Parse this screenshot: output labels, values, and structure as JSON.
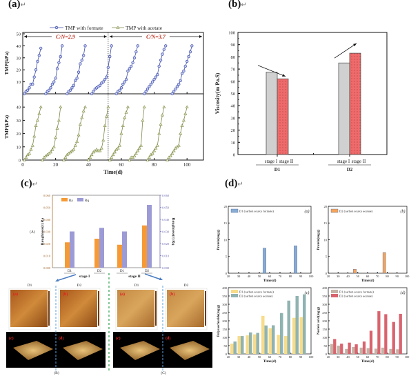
{
  "labels": {
    "a": "(a)",
    "b": "(b)",
    "c": "(c)",
    "d": "(d)",
    "return_mark": "↵"
  },
  "colors": {
    "formate": "#3b4ca8",
    "acetate": "#7d8a4a",
    "cn_text": "#c0392b",
    "stage1_gray": "#d0d0d0",
    "stage2_red": "#ef6b6b",
    "ra_orange": "#f59a35",
    "rq_purple": "#9c9bd6",
    "dc_yellow": "#f7dc8a",
    "dc_teal": "#8fb3b0",
    "dd_tan": "#c4b3a6",
    "dd_red": "#d9636e",
    "da_blue": "#8aabd3",
    "db_orange": "#f5a35a"
  },
  "chart_data": [
    {
      "id": "a",
      "type": "line",
      "title": "",
      "xlabel": "Time(d)",
      "ylabel": "TMP(kPa)",
      "xlim": [
        0,
        110
      ],
      "xticks": [
        0,
        20,
        40,
        60,
        80,
        100
      ],
      "top": {
        "ylim": [
          0,
          50
        ],
        "yticks": [
          10,
          20,
          30,
          40,
          50
        ],
        "ytick_labels": [
          "10",
          "20",
          "30",
          "40",
          "50"
        ]
      },
      "bottom": {
        "ylim": [
          0,
          50
        ],
        "yticks": [
          0,
          10,
          20,
          30,
          40
        ],
        "ytick_labels": [
          "0",
          "10",
          "20",
          "30",
          "40"
        ]
      },
      "divider_x": 52,
      "annotations": [
        {
          "text": "C/N=2.9",
          "range": [
            0,
            52
          ]
        },
        {
          "text": "C/N=3.7",
          "range": [
            52,
            110
          ]
        }
      ],
      "legend": [
        "TMP with formate",
        "TMP with acetate"
      ],
      "series": [
        {
          "name": "TMP with formate",
          "panel": "top",
          "cycles": [
            {
              "x": [
                1,
                2,
                3,
                4,
                5,
                6,
                7,
                8,
                9,
                10,
                11
              ],
              "y": [
                0,
                2,
                3,
                5,
                8,
                8,
                14,
                20,
                27,
                32,
                38
              ]
            },
            {
              "x": [
                14,
                15,
                16,
                17,
                18,
                19,
                20,
                21,
                22,
                23,
                24
              ],
              "y": [
                0,
                2,
                3,
                5,
                8,
                10,
                13,
                21,
                26,
                31,
                40
              ]
            },
            {
              "x": [
                27,
                28,
                29,
                30,
                31,
                32,
                33,
                34,
                35,
                36,
                37,
                38
              ],
              "y": [
                0,
                2,
                3,
                5,
                7,
                11,
                13,
                18,
                25,
                28,
                32,
                40
              ]
            },
            {
              "x": [
                42,
                43,
                44,
                45,
                46,
                47,
                48,
                49,
                50,
                51,
                52,
                53,
                54
              ],
              "y": [
                0,
                2,
                4,
                5,
                6,
                7,
                9,
                10,
                12,
                14,
                22,
                31,
                40
              ]
            },
            {
              "x": [
                57,
                58,
                59,
                60,
                61,
                62,
                63,
                64,
                65,
                66,
                67,
                68,
                69,
                70
              ],
              "y": [
                0,
                2,
                3,
                5,
                8,
                10,
                12,
                19,
                21,
                23,
                26,
                30,
                35,
                40
              ]
            },
            {
              "x": [
                74,
                75,
                76,
                77,
                78,
                79,
                80,
                81,
                82,
                83,
                84,
                85,
                86,
                87
              ],
              "y": [
                0,
                2,
                4,
                6,
                8,
                10,
                12,
                14,
                16,
                23,
                28,
                33,
                37,
                40
              ]
            },
            {
              "x": [
                91,
                92,
                93,
                94,
                95,
                96,
                97,
                98,
                99,
                100,
                101,
                102,
                103
              ],
              "y": [
                0,
                2,
                4,
                6,
                8,
                11,
                17,
                19,
                23,
                27,
                31,
                35,
                40
              ]
            }
          ]
        },
        {
          "name": "TMP with acetate",
          "panel": "bottom",
          "cycles": [
            {
              "x": [
                1,
                2,
                3,
                4,
                5,
                6,
                7,
                8,
                9,
                10,
                11
              ],
              "y": [
                0,
                2,
                4,
                5,
                8,
                11,
                18,
                26,
                30,
                35,
                40
              ]
            },
            {
              "x": [
                12,
                13,
                14,
                15,
                16,
                17,
                18,
                19,
                20,
                21,
                22,
                23
              ],
              "y": [
                0,
                2,
                3,
                4,
                5,
                6,
                8,
                10,
                17,
                24,
                30,
                40
              ]
            },
            {
              "x": [
                25,
                26,
                27,
                28,
                29,
                30,
                31,
                32,
                33,
                34,
                35,
                36,
                37,
                38
              ],
              "y": [
                0,
                2,
                4,
                5,
                6,
                7,
                8,
                11,
                14,
                19,
                27,
                32,
                37,
                40
              ]
            },
            {
              "x": [
                40,
                41,
                42,
                43,
                44,
                45,
                46,
                47,
                48,
                49,
                50,
                51,
                52
              ],
              "y": [
                0,
                2,
                4,
                6,
                7,
                8,
                7,
                7,
                9,
                15,
                26,
                33,
                40
              ]
            },
            {
              "x": [
                53,
                54,
                55,
                56,
                57,
                58,
                59,
                60,
                61,
                62,
                63,
                64
              ],
              "y": [
                0,
                2,
                4,
                6,
                8,
                9,
                11,
                20,
                26,
                32,
                36,
                40
              ]
            },
            {
              "x": [
                65,
                66,
                67,
                68,
                69,
                70,
                71,
                72,
                73,
                74
              ],
              "y": [
                0,
                2,
                2,
                3,
                5,
                7,
                9,
                11,
                30,
                40
              ]
            },
            {
              "x": [
                76,
                77,
                78,
                79,
                80,
                81,
                82,
                83,
                84,
                85,
                86
              ],
              "y": [
                0,
                2,
                4,
                5,
                7,
                9,
                11,
                20,
                27,
                34,
                40
              ]
            },
            {
              "x": [
                88,
                89,
                90,
                91,
                92,
                93,
                94,
                95,
                96,
                97,
                98,
                99,
                100
              ],
              "y": [
                0,
                2,
                3,
                5,
                7,
                9,
                10,
                11,
                20,
                26,
                30,
                35,
                40
              ]
            }
          ]
        }
      ]
    },
    {
      "id": "b",
      "type": "bar",
      "ylabel": "Viscosity(m Pa.S)",
      "ylim": [
        0,
        100
      ],
      "yticks": [
        0,
        10,
        20,
        30,
        40,
        50,
        60,
        70,
        80,
        90,
        100
      ],
      "groups": [
        "D1",
        "D2"
      ],
      "categories": [
        "stage I",
        "stage II"
      ],
      "series": [
        {
          "name": "stage I",
          "values": [
            67.5,
            75
          ]
        },
        {
          "name": "stage II",
          "values": [
            62,
            83
          ]
        }
      ],
      "arrows": [
        "decrease",
        "increase"
      ]
    },
    {
      "id": "c",
      "type": "bar",
      "ylabel_left": "Roughness(r) Ra",
      "ylabel_right": "Roughness(r) Rq",
      "ylim": [
        0,
        0.06
      ],
      "yticks": [
        0,
        0.01,
        0.02,
        0.03,
        0.04,
        0.05,
        0.06
      ],
      "ytick_labels": [
        "0.000",
        "0.010",
        "0.020",
        "0.030",
        "0.040",
        "0.050",
        "0.060"
      ],
      "categories": [
        "D1",
        "D2",
        "D1",
        "D2"
      ],
      "stage_groups": [
        {
          "label": "stage I",
          "span": [
            0,
            1
          ]
        },
        {
          "label": "stage II",
          "span": [
            2,
            3
          ]
        }
      ],
      "series": [
        {
          "name": "Ra",
          "values": [
            0.021,
            0.024,
            0.019,
            0.035
          ]
        },
        {
          "name": "Rq",
          "values": [
            0.03,
            0.033,
            0.03,
            0.052
          ]
        }
      ],
      "side_label": "(A)",
      "afm": {
        "B": {
          "caption": "(B)",
          "cols": [
            "D1",
            "D2"
          ],
          "tiles": [
            "(a)",
            "(b)",
            "(c)",
            "(d)"
          ]
        },
        "C": {
          "caption": "(C)",
          "cols": [
            "D1",
            "D2"
          ],
          "tiles": [
            "(a)",
            "(b)",
            "(c)",
            "(d)"
          ]
        }
      }
    },
    {
      "id": "d-a",
      "type": "bar",
      "tag": "(a)",
      "xlabel": "Time(d)",
      "ylabel": "Protein(mg/g)",
      "xlim": [
        20,
        100
      ],
      "xticks": [
        20,
        30,
        40,
        50,
        60,
        70,
        80,
        90,
        100
      ],
      "ylim": [
        0,
        20
      ],
      "yticks": [
        0,
        5,
        10,
        15,
        20
      ],
      "series": [
        {
          "name": "D1 (carbon source formate)",
          "x": [
            55,
            85
          ],
          "values": [
            7.5,
            8.2
          ]
        }
      ]
    },
    {
      "id": "d-b",
      "type": "bar",
      "tag": "(b)",
      "xlabel": "Time(d)",
      "ylabel": "Protein(mg/g)",
      "xlim": [
        20,
        100
      ],
      "xticks": [
        20,
        30,
        40,
        50,
        60,
        70,
        80,
        90,
        100
      ],
      "ylim": [
        0,
        20
      ],
      "yticks": [
        0,
        5,
        10,
        15,
        20
      ],
      "series": [
        {
          "name": "D2 (carbon source acetate)",
          "x": [
            47,
            77
          ],
          "values": [
            1.2,
            6.2
          ]
        }
      ]
    },
    {
      "id": "d-c",
      "type": "bar",
      "tag": "(c)",
      "xlabel": "Time(d)",
      "ylabel": "Polysaccharide(mg/g)",
      "xlim": [
        20,
        100
      ],
      "xticks": [
        20,
        30,
        40,
        50,
        60,
        70,
        80,
        90,
        100
      ],
      "ylim": [
        0,
        400
      ],
      "yticks": [
        0,
        50,
        100,
        150,
        200,
        250,
        300,
        350,
        400
      ],
      "x": [
        25,
        32,
        40,
        47,
        55,
        62,
        70,
        77,
        85,
        92
      ],
      "series": [
        {
          "name": "D1 (carbon source formate)",
          "values": [
            62,
            108,
            112,
            118,
            230,
            155,
            115,
            108,
            218,
            222
          ]
        },
        {
          "name": "D2 (carbon source acetate)",
          "values": [
            75,
            108,
            130,
            127,
            172,
            173,
            247,
            322,
            350,
            360
          ]
        }
      ]
    },
    {
      "id": "d-d",
      "type": "bar",
      "tag": "(d)",
      "xlabel": "Time(d)",
      "ylabel": "Nucleic acid(mg/g)",
      "xlim": [
        20,
        100
      ],
      "xticks": [
        20,
        30,
        40,
        50,
        60,
        70,
        80,
        90,
        100
      ],
      "ylim": [
        0,
        400
      ],
      "yticks": [
        0,
        50,
        100,
        150,
        200,
        250,
        300,
        350,
        400
      ],
      "x": [
        25,
        32,
        40,
        47,
        55,
        62,
        70,
        77,
        85,
        92
      ],
      "series": [
        {
          "name": "D1 (carbon source formate)",
          "values": [
            60,
            50,
            30,
            42,
            38,
            35,
            32,
            38,
            30,
            28
          ]
        },
        {
          "name": "D2 (carbon source acetate)",
          "values": [
            90,
            62,
            68,
            58,
            75,
            140,
            258,
            240,
            193,
            242
          ]
        }
      ]
    }
  ]
}
